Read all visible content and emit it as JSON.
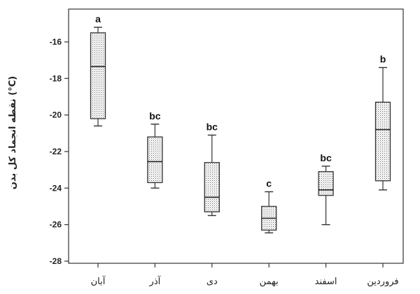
{
  "chart_data": {
    "type": "boxplot",
    "ylabel": "نقطه انجماد کل بدن (°C)",
    "ylim": [
      -28,
      -15
    ],
    "yticks": [
      -16,
      -18,
      -20,
      -22,
      -24,
      -26,
      -28
    ],
    "grid": false,
    "categories": [
      "آبان",
      "آذر",
      "دی",
      "بهمن",
      "اسفند",
      "فروردین"
    ],
    "boxes": [
      {
        "category": "آبان",
        "min": -20.6,
        "q1": -20.2,
        "median": -17.35,
        "q3": -15.5,
        "max": -15.2,
        "group": "a"
      },
      {
        "category": "آذر",
        "min": -24.0,
        "q1": -23.7,
        "median": -22.55,
        "q3": -21.2,
        "max": -20.5,
        "group": "bc"
      },
      {
        "category": "دی",
        "min": -25.5,
        "q1": -25.3,
        "median": -24.5,
        "q3": -22.6,
        "max": -21.1,
        "group": "bc"
      },
      {
        "category": "بهمن",
        "min": -26.45,
        "q1": -26.3,
        "median": -25.65,
        "q3": -25.0,
        "max": -24.2,
        "group": "c"
      },
      {
        "category": "اسفند",
        "min": -26.0,
        "q1": -24.4,
        "median": -24.1,
        "q3": -23.1,
        "max": -22.8,
        "group": "bc"
      },
      {
        "category": "فروردین",
        "min": -24.1,
        "q1": -23.6,
        "median": -20.8,
        "q3": -19.3,
        "max": -17.4,
        "group": "b"
      }
    ]
  }
}
